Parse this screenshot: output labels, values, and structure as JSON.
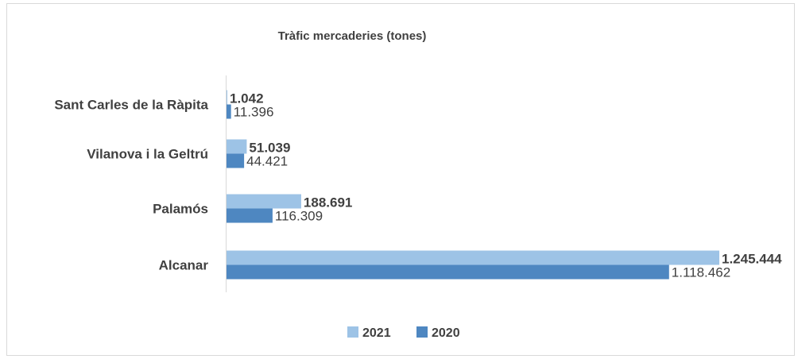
{
  "chart_data": {
    "type": "bar",
    "orientation": "horizontal",
    "title": "Tràfic mercaderies (tones)",
    "categories": [
      "Sant Carles de la Ràpita",
      "Vilanova i la Geltrú",
      "Palamós",
      "Alcanar"
    ],
    "series": [
      {
        "name": "2021",
        "color": "#9dc3e6",
        "values": [
          1042,
          51039,
          188691,
          1245444
        ],
        "labels": [
          "1.042",
          "51.039",
          "188.691",
          "1.245.444"
        ]
      },
      {
        "name": "2020",
        "color": "#4e87c1",
        "values": [
          11396,
          44421,
          116309,
          1118462
        ],
        "labels": [
          "11.396",
          "44.421",
          "116.309",
          "1.118.462"
        ]
      }
    ],
    "xlim": [
      0,
      1245444
    ],
    "grid": false,
    "legend": "bottom"
  }
}
